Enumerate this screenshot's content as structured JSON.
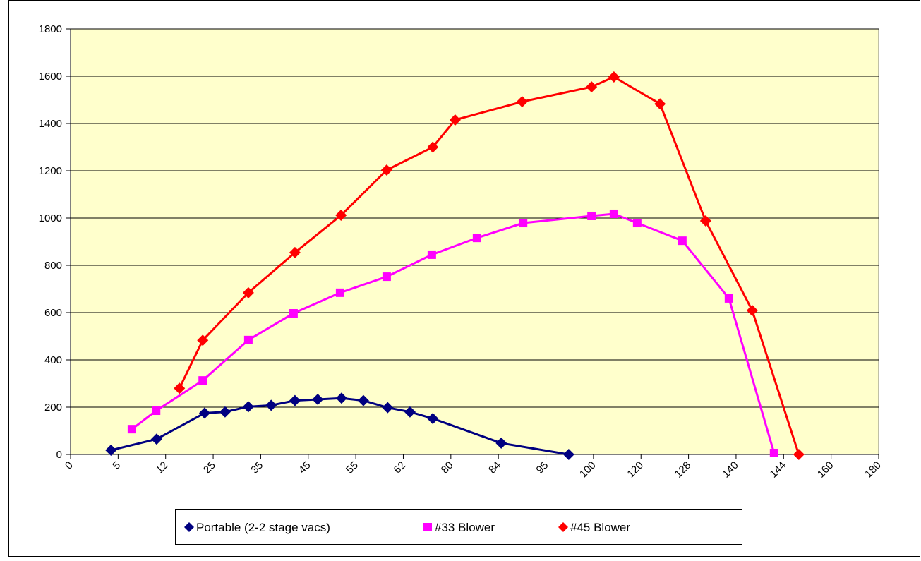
{
  "chart_data": {
    "type": "line",
    "xticks": [
      {
        "value": 0,
        "label": "0"
      },
      {
        "value": 1,
        "label": "5"
      },
      {
        "value": 2,
        "label": "12"
      },
      {
        "value": 3,
        "label": "25"
      },
      {
        "value": 4,
        "label": "35"
      },
      {
        "value": 5,
        "label": "45"
      },
      {
        "value": 6,
        "label": "55"
      },
      {
        "value": 7,
        "label": "62"
      },
      {
        "value": 8,
        "label": "80"
      },
      {
        "value": 9,
        "label": "84"
      },
      {
        "value": 10,
        "label": "95"
      },
      {
        "value": 11,
        "label": "100"
      },
      {
        "value": 12,
        "label": "120"
      },
      {
        "value": 13,
        "label": "128"
      },
      {
        "value": 14,
        "label": "140"
      },
      {
        "value": 15,
        "label": "144"
      },
      {
        "value": 16,
        "label": "160"
      },
      {
        "value": 17,
        "label": "180"
      }
    ],
    "xlim": [
      0,
      17
    ],
    "ylim": [
      0,
      1800
    ],
    "yticks": [
      0,
      200,
      400,
      600,
      800,
      1000,
      1200,
      1400,
      1600,
      1800
    ],
    "grid": true,
    "legend": "bottom",
    "series": [
      {
        "name": "Portable (2-2 stage vacs)",
        "color": "#000080",
        "marker": "diamond",
        "x": [
          0.85,
          1.81,
          2.82,
          3.25,
          3.74,
          4.22,
          4.72,
          5.2,
          5.7,
          6.16,
          6.67,
          7.14,
          7.62,
          9.06,
          10.48
        ],
        "values": [
          18,
          65,
          175,
          180,
          202,
          208,
          228,
          233,
          238,
          228,
          198,
          180,
          152,
          48,
          0
        ]
      },
      {
        "name": "#33 Blower",
        "color": "#ff00ff",
        "marker": "square",
        "x": [
          1.29,
          1.8,
          2.78,
          3.74,
          4.69,
          5.67,
          6.65,
          7.6,
          8.55,
          9.52,
          10.96,
          11.43,
          11.92,
          12.87,
          13.85,
          14.8
        ],
        "values": [
          107,
          185,
          313,
          484,
          597,
          684,
          752,
          845,
          916,
          979,
          1009,
          1018,
          979,
          904,
          660,
          6
        ]
      },
      {
        "name": "#45 Blower",
        "color": "#ff0000",
        "marker": "diamond",
        "x": [
          2.29,
          2.78,
          3.74,
          4.72,
          5.69,
          6.65,
          7.62,
          8.09,
          9.5,
          10.96,
          11.43,
          12.4,
          13.36,
          14.34,
          15.32
        ],
        "values": [
          280,
          483,
          684,
          854,
          1012,
          1203,
          1300,
          1415,
          1492,
          1555,
          1597,
          1483,
          988,
          609,
          0
        ]
      }
    ]
  }
}
